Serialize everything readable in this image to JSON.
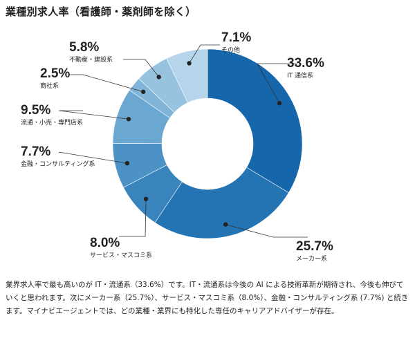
{
  "title": "業種別求人率（看護師・薬剤師を除く）",
  "note": "業界求人率で最も高いのが IT・流通系（33.6%）です。IT・流通系は今後の AI による技術革新が期待され、今後も伸びていくと思われます。次にメーカー系（25.7%）、サービス・マスコミ系（8.0%）、金融・コンサルティング系 (7.7%) と続きます。マイナビエージェントでは、どの業種・業界にも特化した専任のキャリアアドバイザーが存在。",
  "chart_data": {
    "type": "pie",
    "title": "業種別求人率（看護師・薬剤師を除く）",
    "unit": "%",
    "slices": [
      {
        "label": "IT 通信系",
        "value": 33.6,
        "value_label": "33.6%",
        "color": "#1566ab"
      },
      {
        "label": "メーカー系",
        "value": 25.7,
        "value_label": "25.7%",
        "color": "#2473b3"
      },
      {
        "label": "サービス・マスコミ系",
        "value": 8.0,
        "value_label": "8.0%",
        "color": "#3a84bd"
      },
      {
        "label": "金融・コンサルティング系",
        "value": 7.7,
        "value_label": "7.7%",
        "color": "#4d92c5"
      },
      {
        "label": "流通・小売・専門店系",
        "value": 9.5,
        "value_label": "9.5%",
        "color": "#6aa7d1"
      },
      {
        "label": "商社系",
        "value": 2.5,
        "value_label": "2.5%",
        "color": "#80b5d9"
      },
      {
        "label": "不動産・建設系",
        "value": 5.8,
        "value_label": "5.8%",
        "color": "#98c3e0"
      },
      {
        "label": "その他",
        "value": 7.1,
        "value_label": "7.1%",
        "color": "#b6d5ea"
      }
    ]
  }
}
